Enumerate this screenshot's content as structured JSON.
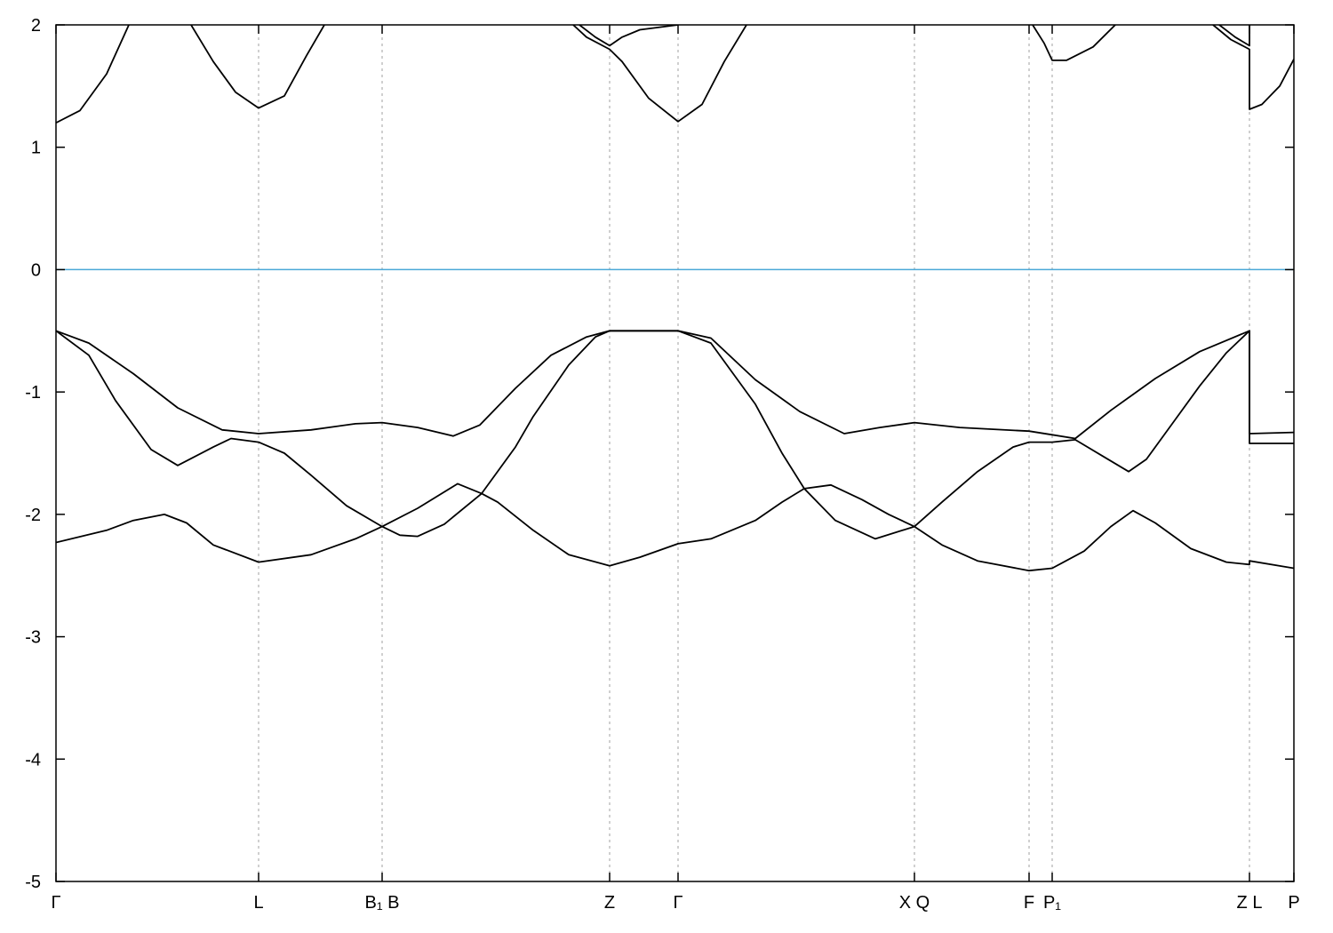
{
  "chart_data": {
    "type": "line",
    "title": "",
    "xlabel": "",
    "ylabel": "",
    "xlim": [
      0,
      13.93
    ],
    "ylim": [
      -5,
      2
    ],
    "yticks": [
      -5,
      -4,
      -3,
      -2,
      -1,
      0,
      1,
      2
    ],
    "grid": "vertical dashed lines at high-symmetry points",
    "legend": "none",
    "colors": {
      "bands": "#000000",
      "fermi_level": "#4aa8d8",
      "grid": "#a0a0a0"
    },
    "xticks": [
      {
        "k": 0,
        "label": "Γ"
      },
      {
        "k": 2.28,
        "label": "L"
      },
      {
        "k": 3.67,
        "label": "B₁ B"
      },
      {
        "k": 6.23,
        "label": "Z"
      },
      {
        "k": 7.0,
        "label": "Γ"
      },
      {
        "k": 9.66,
        "label": "X Q"
      },
      {
        "k": 10.95,
        "label": "F"
      },
      {
        "k": 11.21,
        "label": "P₁"
      },
      {
        "k": 13.43,
        "label": "Z L"
      },
      {
        "k": 13.93,
        "label": "P"
      }
    ],
    "fermi_level": 0,
    "series": [
      {
        "points": [
          [
            0,
            -0.5
          ],
          [
            0.37,
            -0.6
          ],
          [
            0.87,
            -0.85
          ],
          [
            1.37,
            -1.13
          ],
          [
            1.87,
            -1.31
          ],
          [
            2.28,
            -1.34
          ],
          [
            2.87,
            -1.31
          ],
          [
            3.37,
            -1.26
          ],
          [
            3.67,
            -1.25
          ],
          [
            4.07,
            -1.29
          ],
          [
            4.47,
            -1.36
          ],
          [
            4.77,
            -1.27
          ],
          [
            5.17,
            -0.97
          ],
          [
            5.57,
            -0.7
          ],
          [
            5.97,
            -0.55
          ],
          [
            6.23,
            -0.5
          ],
          [
            7.0,
            -0.5
          ],
          [
            7.37,
            -0.56
          ],
          [
            7.87,
            -0.9
          ],
          [
            8.37,
            -1.16
          ],
          [
            8.87,
            -1.34
          ],
          [
            9.27,
            -1.29
          ],
          [
            9.66,
            -1.25
          ],
          [
            10.17,
            -1.29
          ],
          [
            10.95,
            -1.32
          ],
          [
            11.21,
            -1.35
          ],
          [
            11.47,
            -1.38
          ],
          [
            11.87,
            -1.15
          ],
          [
            12.37,
            -0.89
          ],
          [
            12.87,
            -0.67
          ],
          [
            13.43,
            -0.5
          ],
          [
            13.43,
            -1.34
          ],
          [
            13.93,
            -1.33
          ]
        ]
      },
      {
        "points": [
          [
            0,
            -0.5
          ],
          [
            0.37,
            -0.7
          ],
          [
            0.67,
            -1.07
          ],
          [
            1.07,
            -1.47
          ],
          [
            1.37,
            -1.6
          ],
          [
            1.77,
            -1.45
          ],
          [
            1.97,
            -1.38
          ],
          [
            2.28,
            -1.41
          ],
          [
            2.57,
            -1.5
          ],
          [
            2.87,
            -1.68
          ],
          [
            3.27,
            -1.93
          ],
          [
            3.67,
            -2.1
          ],
          [
            4.07,
            -1.95
          ],
          [
            4.52,
            -1.75
          ],
          [
            4.79,
            -1.83
          ],
          [
            5.17,
            -1.45
          ],
          [
            5.37,
            -1.2
          ],
          [
            5.77,
            -0.78
          ],
          [
            6.07,
            -0.55
          ],
          [
            6.23,
            -0.5
          ],
          [
            7.0,
            -0.5
          ],
          [
            7.37,
            -0.6
          ],
          [
            7.87,
            -1.1
          ],
          [
            8.17,
            -1.5
          ],
          [
            8.42,
            -1.79
          ],
          [
            8.72,
            -1.76
          ],
          [
            9.07,
            -1.88
          ],
          [
            9.37,
            -2.0
          ],
          [
            9.66,
            -2.1
          ],
          [
            9.97,
            -1.9
          ],
          [
            10.37,
            -1.65
          ],
          [
            10.77,
            -1.45
          ],
          [
            10.95,
            -1.41
          ],
          [
            11.21,
            -1.41
          ],
          [
            11.47,
            -1.39
          ],
          [
            11.77,
            -1.52
          ],
          [
            12.07,
            -1.65
          ],
          [
            12.27,
            -1.55
          ],
          [
            12.57,
            -1.25
          ],
          [
            12.87,
            -0.95
          ],
          [
            13.17,
            -0.68
          ],
          [
            13.43,
            -0.5
          ],
          [
            13.43,
            -1.42
          ],
          [
            13.93,
            -1.42
          ]
        ]
      },
      {
        "points": [
          [
            0,
            -2.23
          ],
          [
            0.57,
            -2.13
          ],
          [
            0.87,
            -2.05
          ],
          [
            1.22,
            -2.0
          ],
          [
            1.47,
            -2.07
          ],
          [
            1.77,
            -2.25
          ],
          [
            2.28,
            -2.39
          ],
          [
            2.87,
            -2.33
          ],
          [
            3.37,
            -2.2
          ],
          [
            3.67,
            -2.1
          ],
          [
            3.87,
            -2.17
          ],
          [
            4.07,
            -2.18
          ],
          [
            4.37,
            -2.08
          ],
          [
            4.79,
            -1.83
          ],
          [
            4.97,
            -1.9
          ],
          [
            5.37,
            -2.13
          ],
          [
            5.77,
            -2.33
          ],
          [
            6.23,
            -2.42
          ],
          [
            6.57,
            -2.35
          ],
          [
            7.0,
            -2.24
          ],
          [
            7.37,
            -2.2
          ],
          [
            7.87,
            -2.05
          ],
          [
            8.17,
            -1.9
          ],
          [
            8.42,
            -1.79
          ],
          [
            8.77,
            -2.05
          ],
          [
            9.22,
            -2.2
          ],
          [
            9.66,
            -2.1
          ],
          [
            9.97,
            -2.25
          ],
          [
            10.37,
            -2.38
          ],
          [
            10.95,
            -2.46
          ],
          [
            11.21,
            -2.44
          ],
          [
            11.57,
            -2.3
          ],
          [
            11.87,
            -2.1
          ],
          [
            12.12,
            -1.97
          ],
          [
            12.37,
            -2.07
          ],
          [
            12.77,
            -2.28
          ],
          [
            13.17,
            -2.39
          ],
          [
            13.43,
            -2.41
          ],
          [
            13.43,
            -2.38
          ],
          [
            13.93,
            -2.44
          ]
        ]
      },
      {
        "points": [
          [
            0,
            1.2
          ],
          [
            0.27,
            1.3
          ],
          [
            0.57,
            1.6
          ],
          [
            0.82,
            2.0
          ],
          null,
          [
            1.52,
            2.0
          ],
          [
            1.77,
            1.7
          ],
          [
            2.02,
            1.45
          ],
          [
            2.28,
            1.32
          ],
          [
            2.57,
            1.42
          ],
          [
            2.82,
            1.75
          ],
          [
            3.02,
            2.0
          ],
          null,
          [
            5.82,
            2.0
          ],
          [
            5.97,
            1.9
          ],
          [
            6.23,
            1.8
          ],
          [
            6.37,
            1.7
          ],
          [
            6.67,
            1.4
          ],
          [
            7.0,
            1.21
          ],
          [
            7.27,
            1.35
          ],
          [
            7.52,
            1.7
          ],
          [
            7.77,
            2.0
          ],
          null,
          [
            10.99,
            2.0
          ],
          [
            11.12,
            1.85
          ],
          [
            11.21,
            1.71
          ],
          [
            11.37,
            1.71
          ],
          [
            11.67,
            1.82
          ],
          [
            11.92,
            2.0
          ],
          null,
          [
            13.02,
            2.0
          ],
          [
            13.22,
            1.88
          ],
          [
            13.43,
            1.8
          ],
          [
            13.43,
            1.31
          ],
          [
            13.57,
            1.35
          ],
          [
            13.77,
            1.5
          ],
          [
            13.93,
            1.72
          ]
        ]
      },
      {
        "points": [
          [
            5.89,
            2.0
          ],
          [
            6.07,
            1.9
          ],
          [
            6.23,
            1.83
          ],
          [
            6.37,
            1.9
          ],
          [
            6.57,
            1.96
          ],
          [
            7.0,
            2.0
          ],
          null,
          [
            13.09,
            2.0
          ],
          [
            13.27,
            1.9
          ],
          [
            13.43,
            1.83
          ],
          [
            13.43,
            2.0
          ]
        ]
      }
    ]
  }
}
